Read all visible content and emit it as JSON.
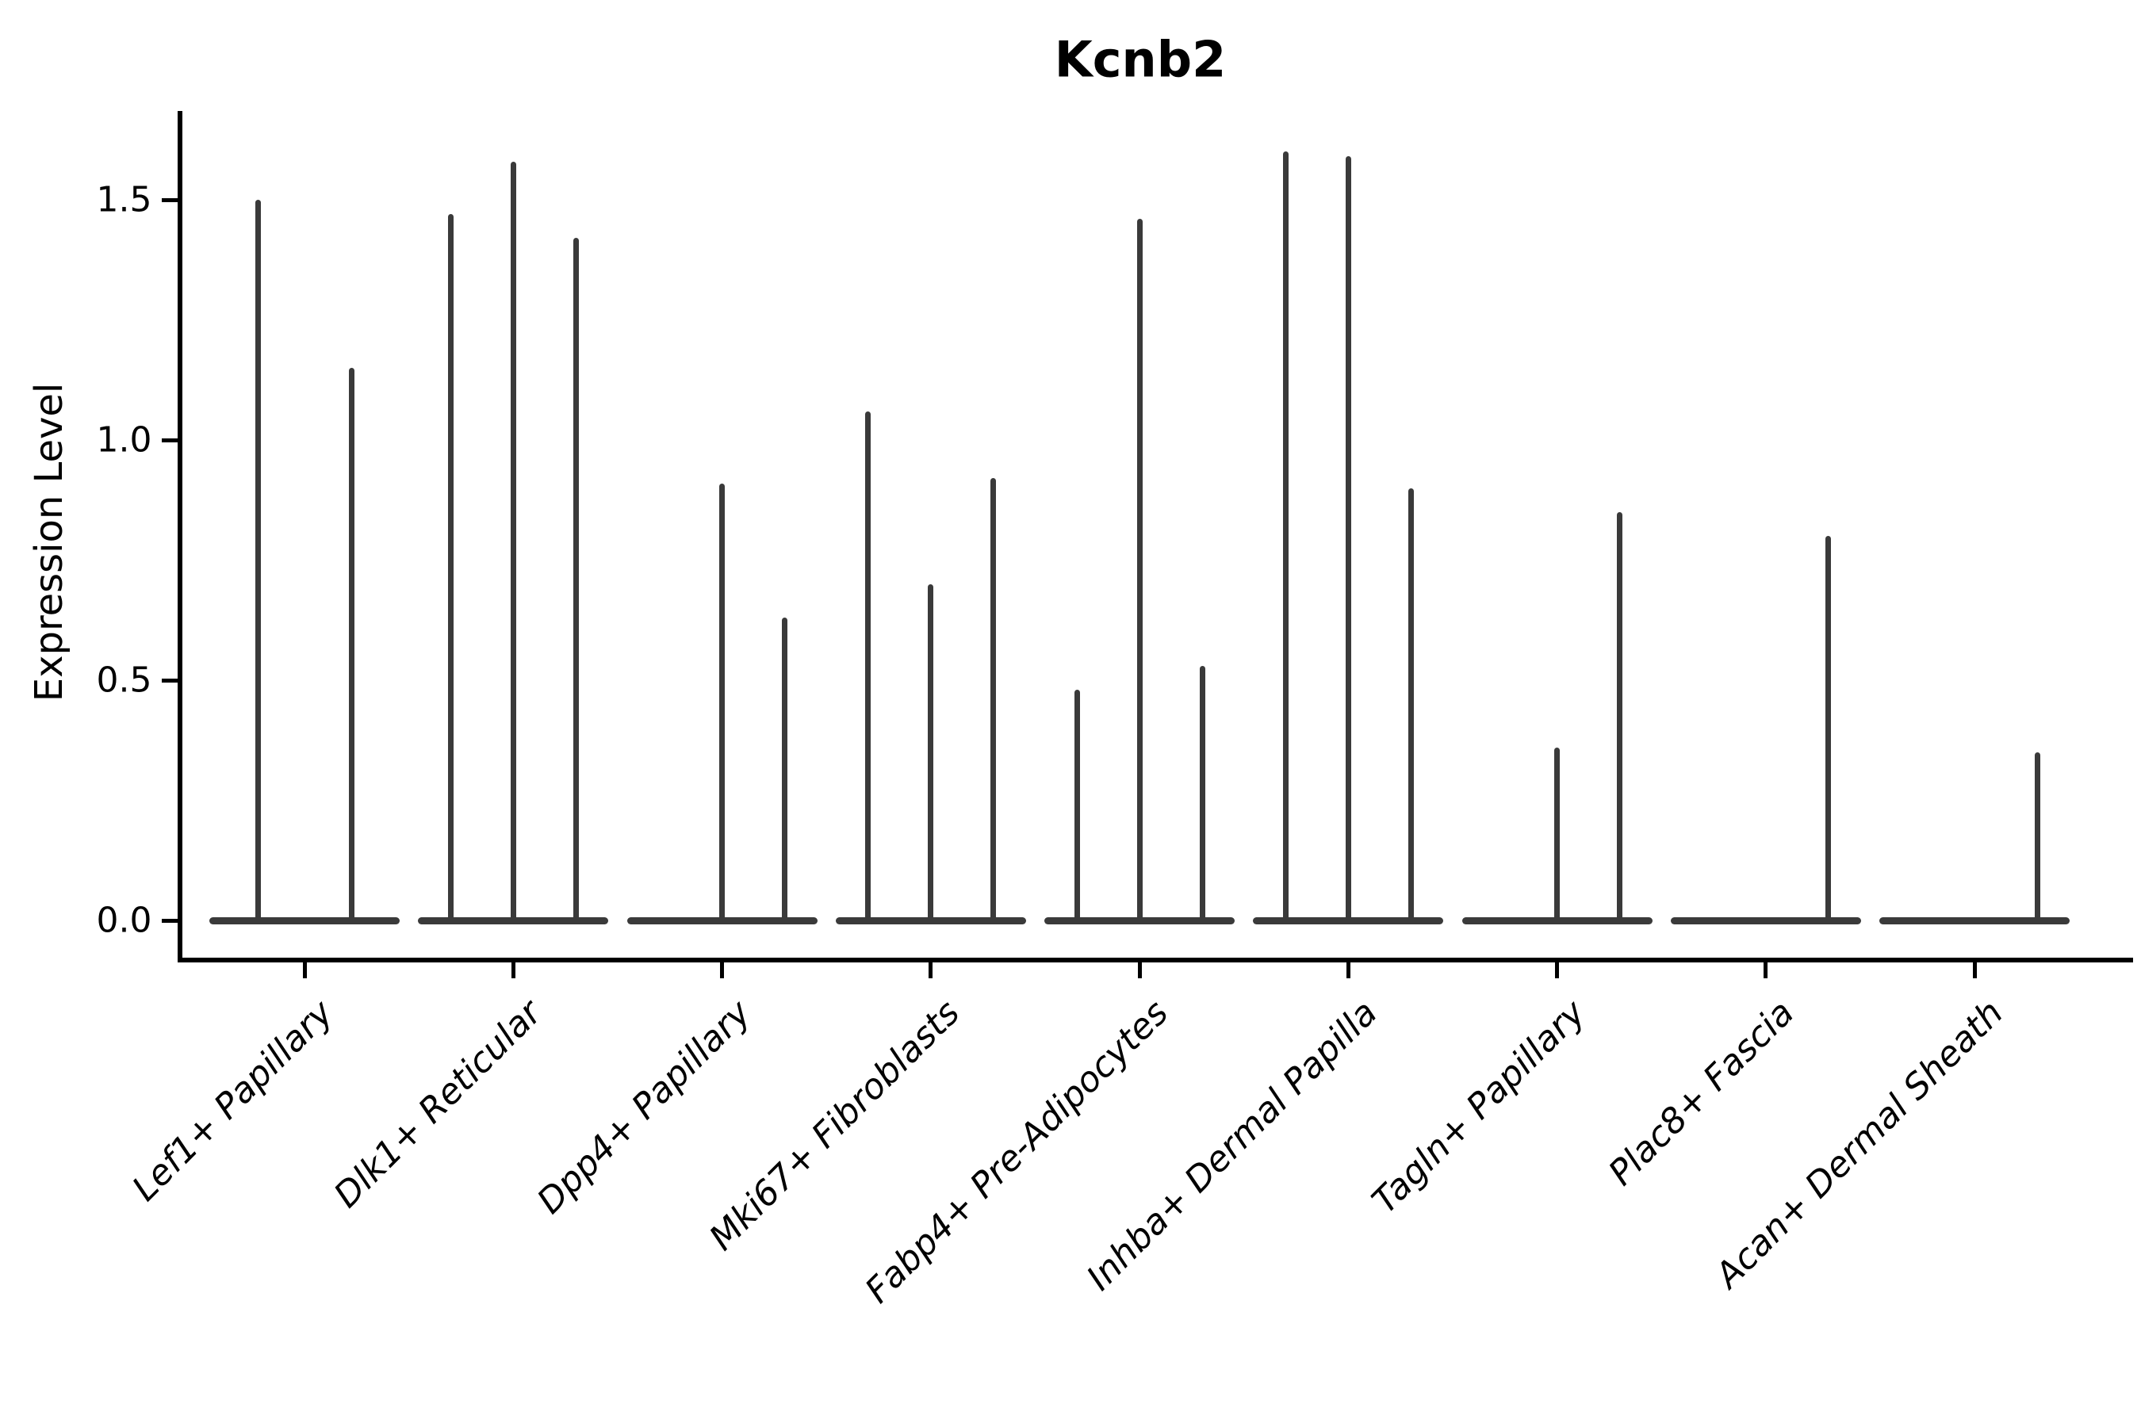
{
  "title": "Kcnb2",
  "y_axis": {
    "label": "Expression Level",
    "tick_labels": [
      "0.0",
      "0.5",
      "1.0",
      "1.5"
    ]
  },
  "chart_data": {
    "type": "violin",
    "title": "Kcnb2",
    "xlabel": "",
    "ylabel": "Expression Level",
    "ylim": [
      -0.08,
      1.69
    ],
    "y_ticks": [
      0.0,
      0.5,
      1.0,
      1.5
    ],
    "grid": false,
    "legend_position": "none",
    "style_note": "split violin plot; each cell type has 2-3 very thin dodged violins; flat lens-shaped bodies sit on the zero baseline and thin vertical spikes reach each violin's maximum expression value; no fill color, dark gray strokes",
    "categories": [
      "Lef1+ Papillary",
      "Dlk1+ Reticular",
      "Dpp4+ Papillary",
      "Mki67+ Fibroblasts",
      "Fabp4+ Pre-Adipocytes",
      "Inhba+ Dermal Papilla",
      "Tagln+ Papillary",
      "Plac8+ Fascia",
      "Acan+ Dermal Sheath"
    ],
    "groups": [
      {
        "category": "Lef1+ Papillary",
        "n_violins": 2,
        "violin_max": [
          1.5,
          1.15
        ]
      },
      {
        "category": "Dlk1+ Reticular",
        "n_violins": 3,
        "violin_max": [
          1.47,
          1.58,
          1.42
        ]
      },
      {
        "category": "Dpp4+ Papillary",
        "n_violins": 3,
        "violin_max": [
          0,
          0.91,
          0.63
        ]
      },
      {
        "category": "Mki67+ Fibroblasts",
        "n_violins": 3,
        "violin_max": [
          1.06,
          0.7,
          0.92
        ]
      },
      {
        "category": "Fabp4+ Pre-Adipocytes",
        "n_violins": 3,
        "violin_max": [
          0.48,
          1.46,
          0.53
        ]
      },
      {
        "category": "Inhba+ Dermal Papilla",
        "n_violins": 3,
        "violin_max": [
          1.6,
          1.59,
          0.9
        ]
      },
      {
        "category": "Tagln+ Papillary",
        "n_violins": 3,
        "violin_max": [
          0,
          0.36,
          0.85
        ]
      },
      {
        "category": "Plac8+ Fascia",
        "n_violins": 3,
        "violin_max": [
          0,
          0,
          0.8
        ]
      },
      {
        "category": "Acan+ Dermal Sheath",
        "n_violins": 3,
        "violin_max": [
          0,
          0,
          0.35
        ]
      }
    ]
  },
  "colors": {
    "violin_stroke": "#3a3a3a",
    "axis": "#000000",
    "text": "#000000",
    "background": "#ffffff"
  }
}
